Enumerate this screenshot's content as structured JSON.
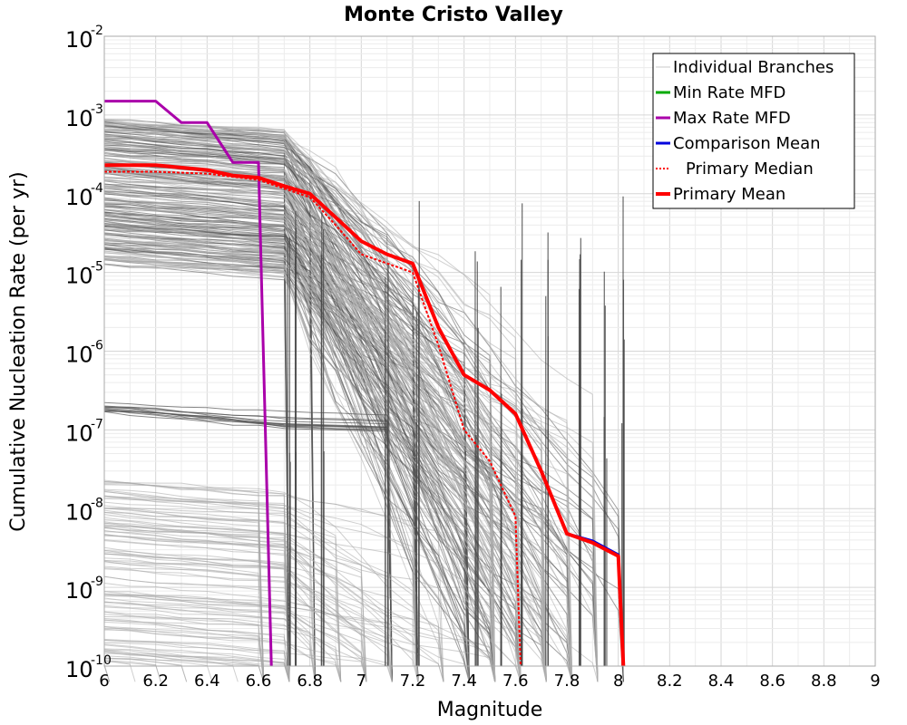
{
  "chart_data": {
    "type": "line",
    "title": "Monte Cristo Valley",
    "xlabel": "Magnitude",
    "ylabel": "Cumulative Nucleation Rate (per yr)",
    "xlim": [
      6,
      9
    ],
    "ylim": [
      1e-10,
      0.01
    ],
    "y_scale": "log",
    "grid": true,
    "legend_position": "top-right",
    "x_ticks": [
      "6",
      "6.2",
      "6.4",
      "6.6",
      "6.8",
      "7",
      "7.2",
      "7.4",
      "7.6",
      "7.8",
      "8",
      "8.2",
      "8.4",
      "8.6",
      "8.8",
      "9"
    ],
    "y_ticks": [
      {
        "base": "10",
        "exp": "-10",
        "value": 1e-10
      },
      {
        "base": "10",
        "exp": "-9",
        "value": 1e-09
      },
      {
        "base": "10",
        "exp": "-8",
        "value": 1e-08
      },
      {
        "base": "10",
        "exp": "-7",
        "value": 1e-07
      },
      {
        "base": "10",
        "exp": "-6",
        "value": 1e-06
      },
      {
        "base": "10",
        "exp": "-5",
        "value": 1e-05
      },
      {
        "base": "10",
        "exp": "-4",
        "value": 0.0001
      },
      {
        "base": "10",
        "exp": "-3",
        "value": 0.001
      },
      {
        "base": "10",
        "exp": "-2",
        "value": 0.01
      }
    ],
    "legend": [
      {
        "label": "Individual Branches",
        "color": "#c8c8c8",
        "style": "solid"
      },
      {
        "label": "Min Rate MFD",
        "color": "#00aa00",
        "style": "solid"
      },
      {
        "label": "Max Rate MFD",
        "color": "#aa00aa",
        "style": "solid"
      },
      {
        "label": "Comparison Mean",
        "color": "#0000dd",
        "style": "solid"
      },
      {
        "label": "Primary Median",
        "color": "#ff0000",
        "style": "dotted"
      },
      {
        "label": "Primary Mean",
        "color": "#ff0000",
        "style": "solid"
      }
    ],
    "series": [
      {
        "name": "Max Rate MFD",
        "color": "#aa00aa",
        "x": [
          6.0,
          6.2,
          6.3,
          6.4,
          6.5,
          6.6,
          6.65
        ],
        "y": [
          0.0015,
          0.0015,
          0.0008,
          0.0008,
          0.00025,
          0.00025,
          1e-10
        ]
      },
      {
        "name": "Primary Mean",
        "color": "#ff0000",
        "x": [
          6.0,
          6.2,
          6.4,
          6.5,
          6.6,
          6.7,
          6.8,
          6.9,
          7.0,
          7.1,
          7.2,
          7.3,
          7.4,
          7.5,
          7.6,
          7.7,
          7.8,
          7.9,
          8.0,
          8.02
        ],
        "y": [
          0.00023,
          0.00023,
          0.0002,
          0.00017,
          0.00016,
          0.000125,
          0.0001,
          5e-05,
          2.5e-05,
          1.7e-05,
          1.3e-05,
          2e-06,
          5e-07,
          3.2e-07,
          1.6e-07,
          3e-08,
          4.8e-09,
          3.7e-09,
          2.5e-09,
          1e-10
        ]
      },
      {
        "name": "Primary Median",
        "color": "#ff0000",
        "x": [
          6.0,
          6.2,
          6.4,
          6.6,
          6.8,
          6.9,
          7.0,
          7.2,
          7.3,
          7.4,
          7.5,
          7.6,
          7.62
        ],
        "y": [
          0.00019,
          0.00019,
          0.00018,
          0.00015,
          9e-05,
          4e-05,
          1.7e-05,
          1e-05,
          1.2e-06,
          1e-07,
          4e-08,
          8e-09,
          1e-10
        ]
      },
      {
        "name": "Comparison Mean",
        "color": "#0000dd",
        "x": [
          6.0,
          6.2,
          6.4,
          6.5,
          6.6,
          6.7,
          6.8,
          6.9,
          7.0,
          7.1,
          7.2,
          7.3,
          7.4,
          7.5,
          7.6,
          7.7,
          7.8,
          7.9,
          8.0,
          8.02
        ],
        "y": [
          0.00023,
          0.00023,
          0.0002,
          0.00017,
          0.00016,
          0.000125,
          0.0001,
          5e-05,
          2.5e-05,
          1.7e-05,
          1.3e-05,
          2e-06,
          5e-07,
          3.2e-07,
          1.6e-07,
          3e-08,
          4.8e-09,
          3.9e-09,
          2.6e-09,
          1e-10
        ]
      }
    ]
  }
}
